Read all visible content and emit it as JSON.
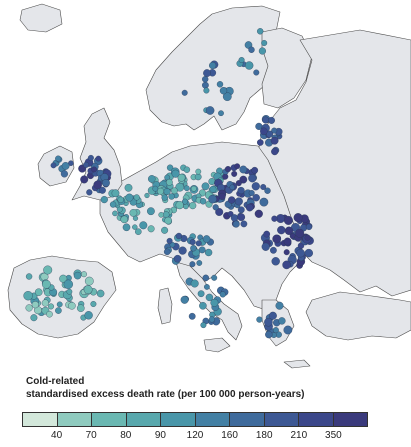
{
  "legend": {
    "title_line1": "Cold-related",
    "title_line2": "standardised excess death rate (per 100 000 person-years)",
    "ticks": [
      "40",
      "70",
      "80",
      "90",
      "120",
      "160",
      "180",
      "210",
      "350"
    ],
    "colors": [
      "#d3e8db",
      "#8fcbbf",
      "#6ab8b2",
      "#58a8ad",
      "#4996a9",
      "#4380a4",
      "#3f6b9c",
      "#3d5894",
      "#3b478a",
      "#3a3a7c"
    ]
  },
  "map_colors": {
    "land": "#e4e6ea",
    "border": "#4a4a4a"
  }
}
